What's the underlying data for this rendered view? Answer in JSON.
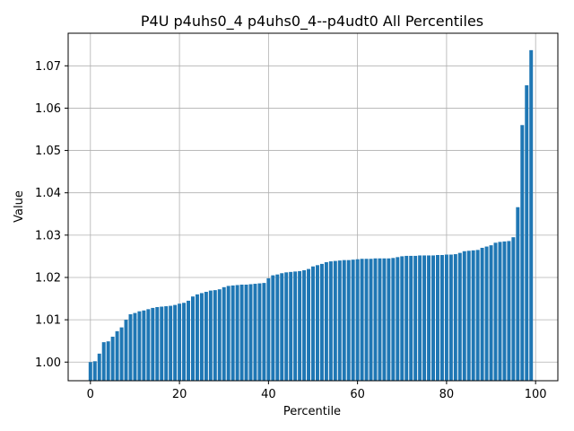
{
  "chart_data": {
    "type": "bar",
    "title": "P4U p4uhs0_4 p4uhs0_4--p4udt0 All Percentiles",
    "xlabel": "Percentile",
    "ylabel": "Value",
    "xlim": [
      -5,
      105
    ],
    "ylim": [
      0.9956,
      1.0777
    ],
    "xticks": [
      0,
      20,
      40,
      60,
      80,
      100
    ],
    "xtick_labels": [
      "0",
      "20",
      "40",
      "60",
      "80",
      "100"
    ],
    "yticks": [
      1.0,
      1.01,
      1.02,
      1.03,
      1.04,
      1.05,
      1.06,
      1.07
    ],
    "ytick_labels": [
      "1.00",
      "1.01",
      "1.02",
      "1.03",
      "1.04",
      "1.05",
      "1.06",
      "1.07"
    ],
    "grid": true,
    "bar_color": "#1f77b4",
    "x": [
      0,
      1,
      2,
      3,
      4,
      5,
      6,
      7,
      8,
      9,
      10,
      11,
      12,
      13,
      14,
      15,
      16,
      17,
      18,
      19,
      20,
      21,
      22,
      23,
      24,
      25,
      26,
      27,
      28,
      29,
      30,
      31,
      32,
      33,
      34,
      35,
      36,
      37,
      38,
      39,
      40,
      41,
      42,
      43,
      44,
      45,
      46,
      47,
      48,
      49,
      50,
      51,
      52,
      53,
      54,
      55,
      56,
      57,
      58,
      59,
      60,
      61,
      62,
      63,
      64,
      65,
      66,
      67,
      68,
      69,
      70,
      71,
      72,
      73,
      74,
      75,
      76,
      77,
      78,
      79,
      80,
      81,
      82,
      83,
      84,
      85,
      86,
      87,
      88,
      89,
      90,
      91,
      92,
      93,
      94,
      95,
      96,
      97,
      98,
      99
    ],
    "values": [
      1.0,
      1.0002,
      1.002,
      1.0047,
      1.0049,
      1.006,
      1.0073,
      1.0082,
      1.01,
      1.0113,
      1.0116,
      1.012,
      1.0122,
      1.0125,
      1.0128,
      1.013,
      1.0131,
      1.0132,
      1.0133,
      1.0135,
      1.0138,
      1.014,
      1.0145,
      1.0155,
      1.016,
      1.0163,
      1.0166,
      1.0169,
      1.017,
      1.0172,
      1.0177,
      1.018,
      1.0181,
      1.0182,
      1.0183,
      1.0183,
      1.0184,
      1.0185,
      1.0186,
      1.0187,
      1.0198,
      1.0205,
      1.0207,
      1.021,
      1.0212,
      1.0213,
      1.0214,
      1.0215,
      1.0217,
      1.022,
      1.0226,
      1.0229,
      1.0232,
      1.0236,
      1.0238,
      1.0239,
      1.024,
      1.0241,
      1.0241,
      1.0242,
      1.0243,
      1.0244,
      1.0244,
      1.0244,
      1.0245,
      1.0245,
      1.0245,
      1.0245,
      1.0246,
      1.0248,
      1.025,
      1.0251,
      1.0251,
      1.0251,
      1.0252,
      1.0252,
      1.0252,
      1.0252,
      1.0253,
      1.0253,
      1.0254,
      1.0254,
      1.0255,
      1.0258,
      1.0262,
      1.0263,
      1.0264,
      1.0265,
      1.027,
      1.0273,
      1.0276,
      1.0282,
      1.0284,
      1.0285,
      1.0286,
      1.0295,
      1.0366,
      1.056,
      1.0654,
      1.0737
    ]
  }
}
